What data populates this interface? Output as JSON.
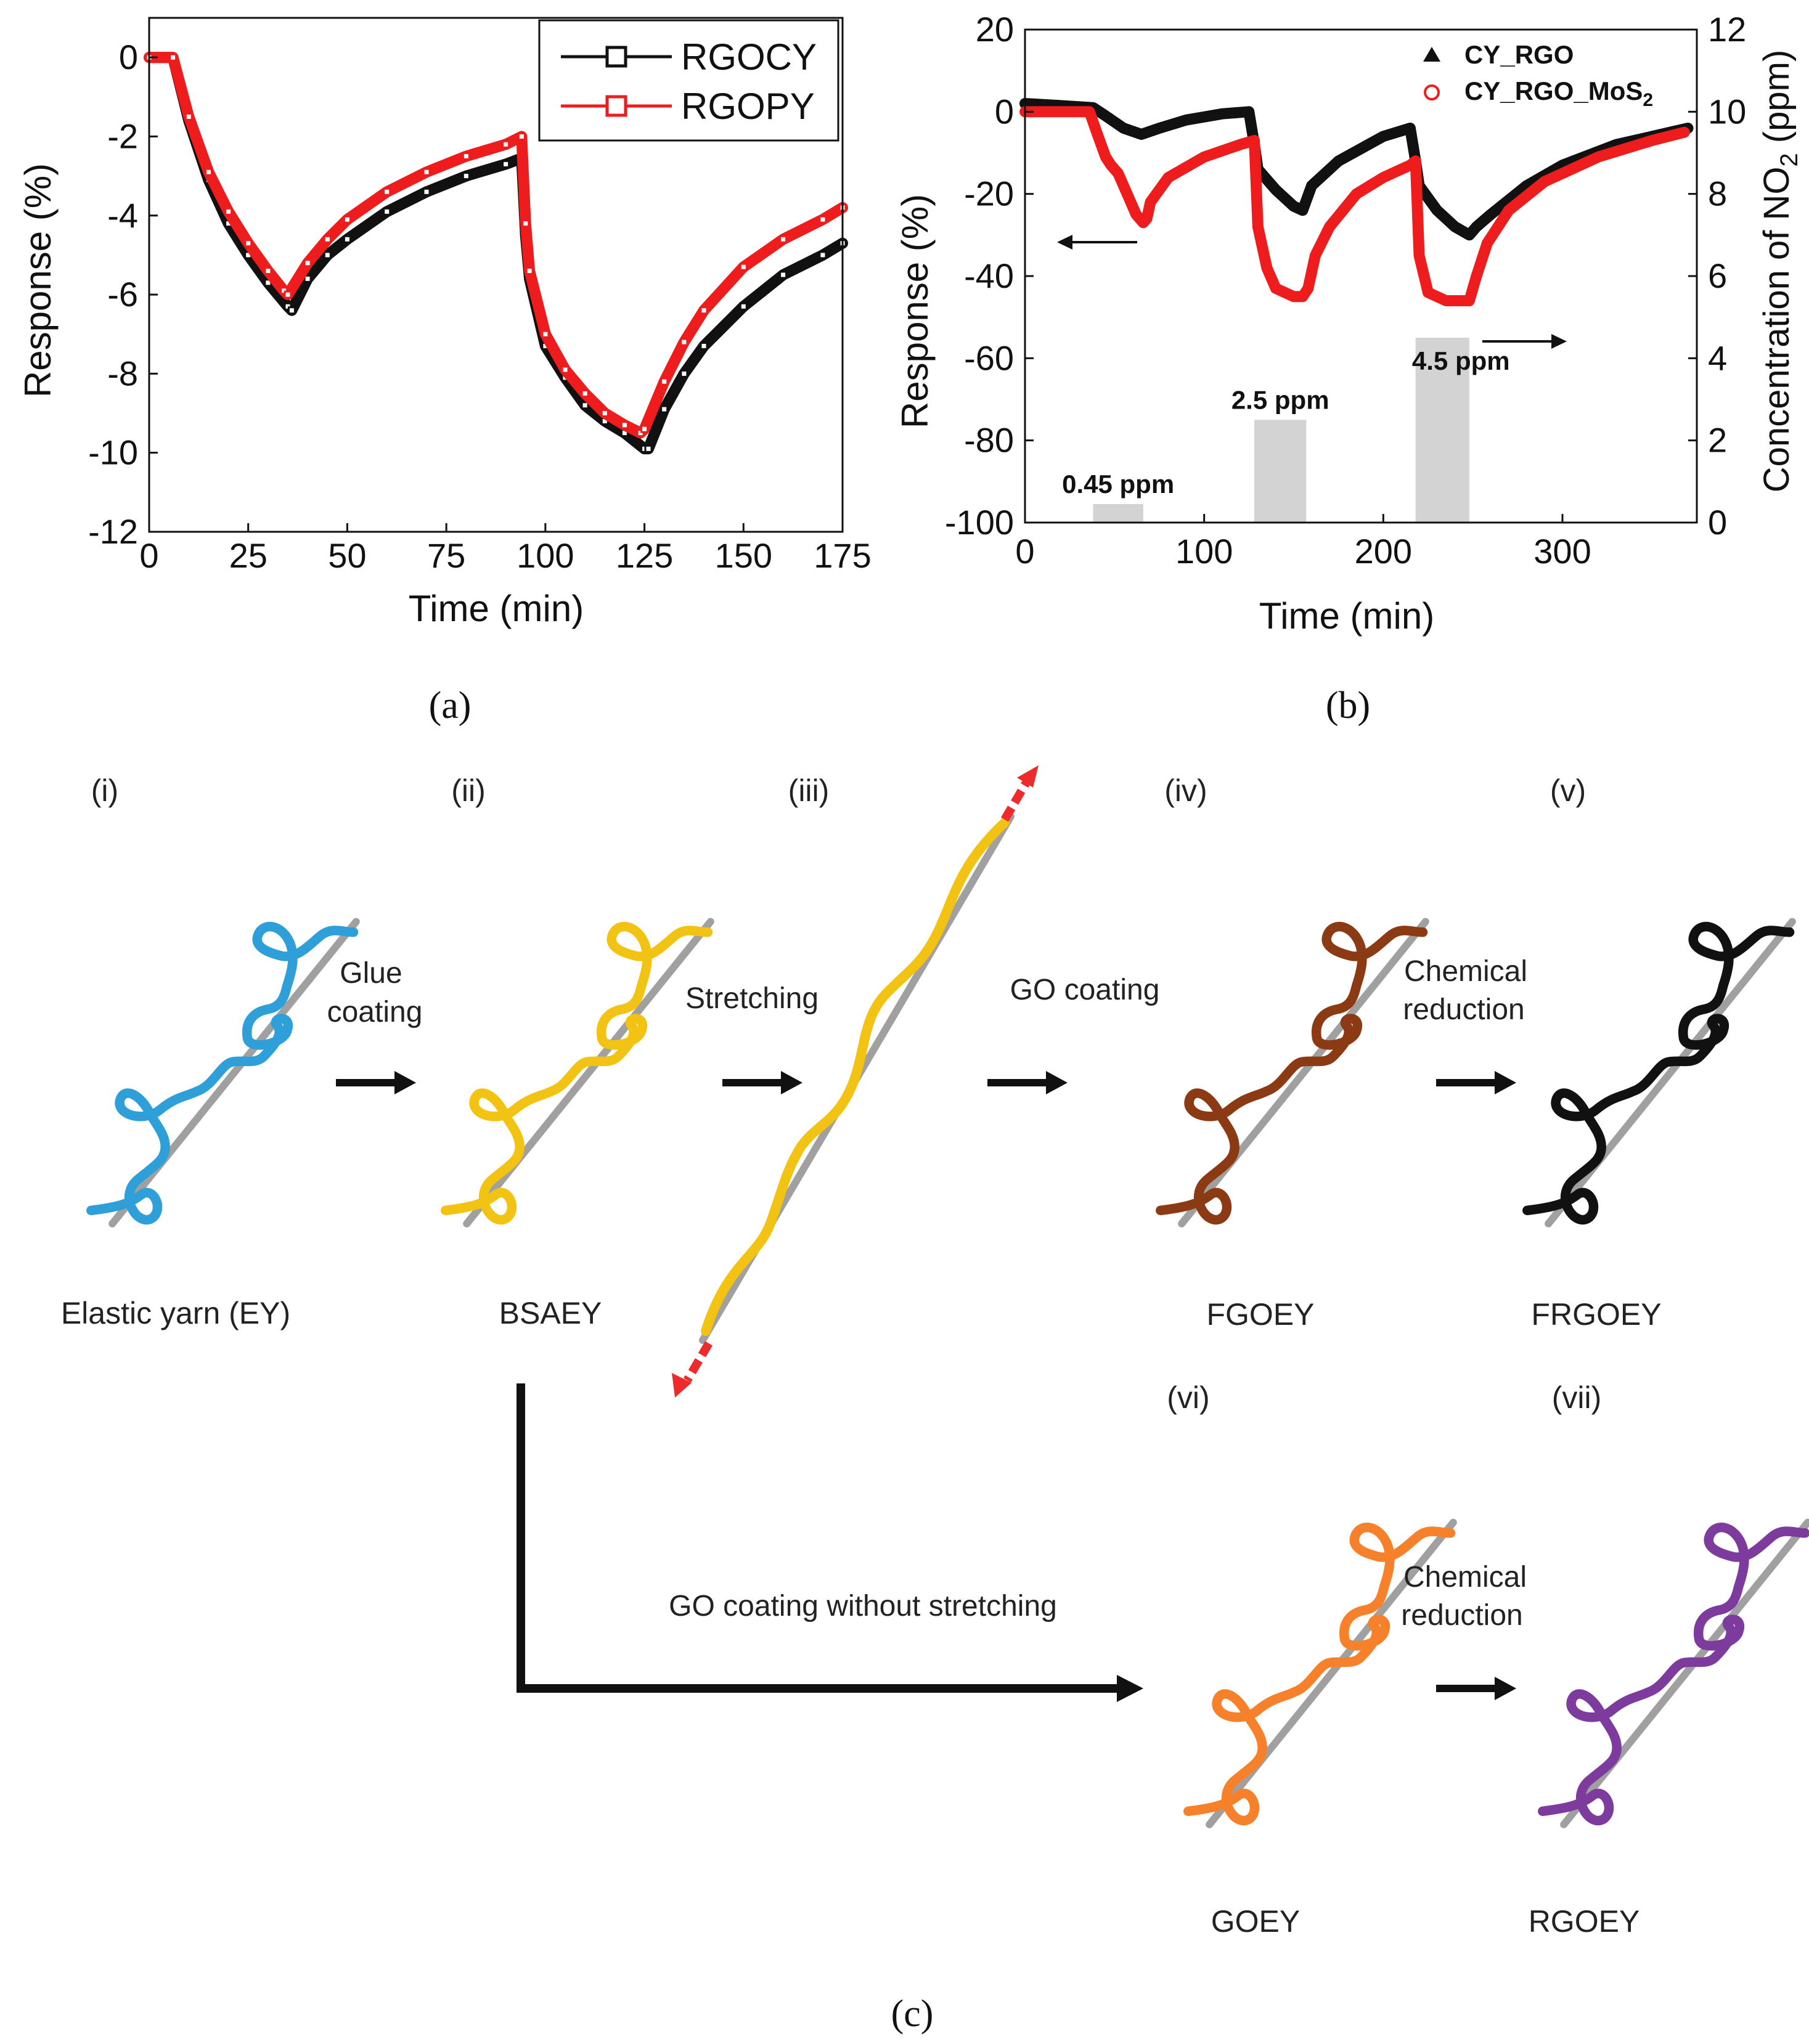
{
  "panel_a": {
    "caption": "(a)",
    "ylabel": "Response (%)",
    "xlabel": "Time (min)"
  },
  "panel_b": {
    "caption": "(b)",
    "ylabel": "Response (%)",
    "y2label_pre": "Concentration of NO",
    "y2label_sub": "2",
    "y2label_post": " (ppm)",
    "xlabel": "Time (min)",
    "legend_rgo": "CY_RGO",
    "legend_mos2_pre": "CY_RGO_MoS",
    "legend_mos2_sub": "2",
    "conc_labels": [
      "0.45 ppm",
      "2.5 ppm",
      "4.5 ppm"
    ]
  },
  "panel_c": {
    "caption": "(c)",
    "steps": {
      "i": "(i)",
      "ii": "(ii)",
      "iii": "(iii)",
      "iv": "(iv)",
      "v": "(v)",
      "vi": "(vi)",
      "vii": "(vii)"
    },
    "names": {
      "ey": "Elastic yarn (EY)",
      "bsaey": "BSAEY",
      "fgoey": "FGOEY",
      "frgoey": "FRGOEY",
      "goey": "GOEY",
      "rgoey": "RGOEY"
    },
    "actions": {
      "glue_1": "Glue",
      "glue_2": "coating",
      "stretching": "Stretching",
      "go_coating": "GO coating",
      "chem1_1": "Chemical",
      "chem1_2": "reduction",
      "go_no_stretch": "GO coating without stretching",
      "chem2_1": "Chemical",
      "chem2_2": "reduction"
    },
    "colors": {
      "ey": "#2e9fd9",
      "bsaey": "#f2c312",
      "fgoey": "#8b3a14",
      "frgoey": "#111111",
      "goey": "#f7802a",
      "rgoey": "#7d3b9e",
      "core": "#a0a0a0",
      "stretch_arrow": "#ee2a2a"
    }
  },
  "chart_data": [
    {
      "type": "line",
      "xlim": [
        0,
        175
      ],
      "ylim": [
        -12,
        1
      ],
      "xticks": [
        0,
        25,
        50,
        75,
        100,
        125,
        150,
        175
      ],
      "yticks": [
        0,
        -2,
        -4,
        -6,
        -8,
        -10,
        -12
      ],
      "legend_position": "top-right",
      "series": [
        {
          "name": "RGOCY",
          "color": "#111111",
          "x": [
            0,
            6,
            10,
            15,
            20,
            25,
            30,
            35,
            36,
            40,
            45,
            50,
            60,
            70,
            80,
            90,
            94,
            95,
            96,
            100,
            105,
            110,
            115,
            120,
            125,
            126,
            130,
            135,
            140,
            150,
            160,
            170,
            175
          ],
          "y": [
            0,
            0,
            -1.6,
            -3.1,
            -4.2,
            -5.0,
            -5.7,
            -6.3,
            -6.4,
            -5.6,
            -5.0,
            -4.6,
            -3.9,
            -3.4,
            -3.0,
            -2.7,
            -2.55,
            -4.5,
            -5.6,
            -7.3,
            -8.1,
            -8.8,
            -9.2,
            -9.5,
            -9.9,
            -9.9,
            -8.9,
            -8.0,
            -7.3,
            -6.3,
            -5.5,
            -5.0,
            -4.7
          ]
        },
        {
          "name": "RGOPY",
          "color": "#ee1c1c",
          "x": [
            0,
            6,
            10,
            15,
            20,
            25,
            30,
            34,
            35,
            40,
            45,
            50,
            60,
            70,
            80,
            90,
            94,
            95,
            96,
            100,
            105,
            110,
            115,
            120,
            124,
            125,
            130,
            135,
            140,
            150,
            160,
            170,
            175
          ],
          "y": [
            0,
            0,
            -1.5,
            -2.9,
            -3.9,
            -4.7,
            -5.4,
            -5.9,
            -6.0,
            -5.2,
            -4.6,
            -4.1,
            -3.4,
            -2.9,
            -2.5,
            -2.2,
            -2.0,
            -4.2,
            -5.4,
            -7.0,
            -7.9,
            -8.5,
            -9.0,
            -9.3,
            -9.5,
            -9.4,
            -8.2,
            -7.2,
            -6.4,
            -5.3,
            -4.6,
            -4.1,
            -3.8
          ]
        }
      ]
    },
    {
      "type": "line",
      "xlim": [
        0,
        375
      ],
      "ylim": [
        -100,
        20
      ],
      "y2lim": [
        0,
        12
      ],
      "xticks": [
        0,
        100,
        200,
        300
      ],
      "yticks": [
        20,
        0,
        -20,
        -40,
        -60,
        -80,
        -100
      ],
      "y2ticks": [
        0,
        2,
        4,
        6,
        8,
        10,
        12
      ],
      "legend_position": "top-right",
      "series": [
        {
          "name": "CY_RGO",
          "color": "#111111",
          "marker": "triangle",
          "x": [
            0,
            20,
            38,
            45,
            55,
            65,
            75,
            90,
            110,
            125,
            128,
            130,
            140,
            150,
            155,
            160,
            175,
            200,
            215,
            218,
            220,
            230,
            240,
            248,
            252,
            260,
            280,
            300,
            330,
            360,
            370
          ],
          "y": [
            2,
            1.5,
            1,
            -1,
            -4,
            -5.5,
            -4,
            -2,
            -0.5,
            0,
            -8,
            -14,
            -19,
            -23,
            -24,
            -18,
            -12,
            -6,
            -4,
            -12,
            -18,
            -24,
            -28,
            -30,
            -28,
            -25,
            -18,
            -13,
            -8,
            -5,
            -4
          ]
        },
        {
          "name": "CY_RGO_MoS2",
          "color": "#ee1c1c",
          "marker": "circle",
          "x": [
            0,
            20,
            36,
            40,
            45,
            48,
            52,
            58,
            62,
            66,
            68,
            70,
            80,
            100,
            120,
            128,
            130,
            135,
            140,
            150,
            155,
            158,
            162,
            170,
            185,
            200,
            215,
            218,
            220,
            225,
            235,
            248,
            252,
            258,
            270,
            290,
            320,
            350,
            368
          ],
          "y": [
            0,
            0,
            0,
            -5,
            -11,
            -13,
            -15,
            -21,
            -25,
            -27,
            -26,
            -22,
            -16,
            -11,
            -8,
            -7,
            -28,
            -38,
            -43,
            -45,
            -45,
            -43,
            -35,
            -28,
            -20,
            -16,
            -13,
            -12,
            -35,
            -44,
            -46,
            -46,
            -40,
            -32,
            -24,
            -17,
            -11,
            -7,
            -5
          ]
        }
      ],
      "concentration_bars": [
        {
          "x_start": 38,
          "x_end": 66,
          "ppm": 0.45,
          "label": "0.45 ppm"
        },
        {
          "x_start": 128,
          "x_end": 157,
          "ppm": 2.5,
          "label": "2.5 ppm"
        },
        {
          "x_start": 218,
          "x_end": 248,
          "ppm": 4.5,
          "label": "4.5 ppm"
        }
      ]
    }
  ]
}
